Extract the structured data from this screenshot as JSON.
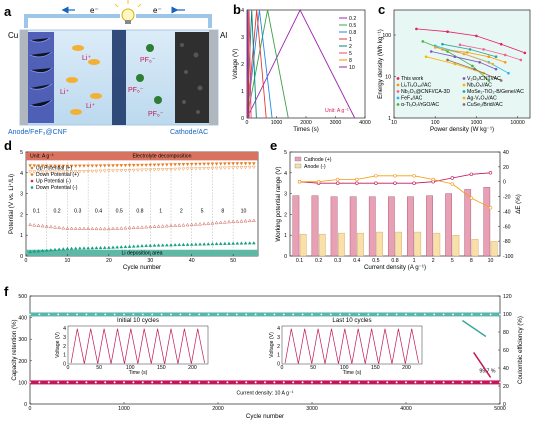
{
  "panels": {
    "a": {
      "label": "a",
      "electron_left": "e⁻",
      "electron_right": "e⁻",
      "cu": "Cu",
      "al": "Al",
      "ions": [
        "Li⁺",
        "Li⁺",
        "Li⁺"
      ],
      "anions": [
        "PF₆⁻",
        "PF₆⁻",
        "PF₆⁻"
      ],
      "anode_caption": "Anode/FeF₃@CNF",
      "cathode_caption": "Cathode/AC"
    },
    "b": {
      "label": "b"
    },
    "c": {
      "label": "c"
    },
    "d": {
      "label": "d"
    },
    "e": {
      "label": "e"
    },
    "f": {
      "label": "f"
    }
  },
  "colors": {
    "pink": "#c2185b",
    "teal": "#3aa99f",
    "orange": "#f39c12",
    "violet": "#7b1fa2"
  },
  "chart_data": [
    {
      "id": "b",
      "type": "line",
      "xlabel": "Times (s)",
      "ylabel": "Voltage (V)",
      "xlim": [
        0,
        4000
      ],
      "ylim": [
        0,
        4
      ],
      "xticks": [
        0,
        1000,
        2000,
        3000,
        4000
      ],
      "yticks": [
        0,
        1,
        2,
        3,
        4
      ],
      "legend_title": "",
      "annotation": "Unit: A g⁻¹",
      "series": [
        {
          "name": "0.2",
          "color": "#9c27b0",
          "points": [
            [
              0,
              0
            ],
            [
              1800,
              4
            ],
            [
              3650,
              0
            ]
          ]
        },
        {
          "name": "0.5",
          "color": "#43a047",
          "points": [
            [
              0,
              0
            ],
            [
              700,
              4
            ],
            [
              1400,
              0
            ]
          ]
        },
        {
          "name": "0.8",
          "color": "#1e88e5",
          "points": [
            [
              0,
              0
            ],
            [
              420,
              4
            ],
            [
              850,
              0
            ]
          ]
        },
        {
          "name": "1",
          "color": "#e53935",
          "points": [
            [
              0,
              0
            ],
            [
              330,
              4
            ],
            [
              650,
              0
            ]
          ]
        },
        {
          "name": "2",
          "color": "#00897b",
          "points": [
            [
              0,
              0
            ],
            [
              160,
              4
            ],
            [
              320,
              0
            ]
          ]
        },
        {
          "name": "5",
          "color": "#ec407a",
          "points": [
            [
              0,
              0
            ],
            [
              70,
              4
            ],
            [
              140,
              0
            ]
          ]
        },
        {
          "name": "8",
          "color": "#fb8c00",
          "points": [
            [
              0,
              0
            ],
            [
              40,
              4
            ],
            [
              80,
              0
            ]
          ]
        },
        {
          "name": "10",
          "color": "#8e24aa",
          "points": [
            [
              0,
              0
            ],
            [
              28,
              4
            ],
            [
              56,
              0
            ]
          ]
        }
      ]
    },
    {
      "id": "c",
      "type": "scatter",
      "xlabel": "Power density (W kg⁻¹)",
      "ylabel": "Energy density (Wh kg⁻¹)",
      "xscale": "log",
      "yscale": "log",
      "xlim": [
        10,
        20000
      ],
      "ylim": [
        1,
        400
      ],
      "xticks": [
        10,
        100,
        1000,
        10000
      ],
      "yticks": [
        1,
        10,
        100
      ],
      "legend": [
        {
          "name": "This work",
          "color": "#e91e63"
        },
        {
          "name": "Li₂Ti₄O₁₂//AC",
          "color": "#ff9800"
        },
        {
          "name": "Nb₂O₅@CNF//CA-3D",
          "color": "#f06292"
        },
        {
          "name": "FeF₃//AC",
          "color": "#29b6f6"
        },
        {
          "name": "α-Ti₃O₇//rGO/AC",
          "color": "#4caf50"
        },
        {
          "name": "V₂O₅/CNT//AC",
          "color": "#7e57c2"
        },
        {
          "name": "Nb₂O₅//AC",
          "color": "#ffb300"
        },
        {
          "name": "MoSe₂-TiO₂-B/Gene//AC",
          "color": "#26a69a"
        },
        {
          "name": "Ag-V₂O₅//AC",
          "color": "#ffa726"
        },
        {
          "name": "CuSe₂/Brid//AC",
          "color": "#8d6e63"
        }
      ],
      "series": [
        {
          "name": "This work",
          "color": "#e91e63",
          "x": [
            35,
            200,
            1000,
            4000,
            15000
          ],
          "y": [
            140,
            120,
            95,
            60,
            37
          ]
        },
        {
          "name": "Li₂Ti₄O₁₂//AC",
          "color": "#ff9800",
          "x": [
            150,
            600,
            2000,
            5000
          ],
          "y": [
            45,
            38,
            30,
            22
          ]
        },
        {
          "name": "Nb₂O₅@CNF//CA-3D",
          "color": "#f06292",
          "x": [
            400,
            1500,
            5000,
            12000
          ],
          "y": [
            58,
            45,
            33,
            25
          ]
        },
        {
          "name": "FeF₃//AC",
          "color": "#29b6f6",
          "x": [
            100,
            500,
            2000,
            6000
          ],
          "y": [
            55,
            35,
            22,
            12
          ]
        },
        {
          "name": "α-Ti₃O₇//rGO/AC",
          "color": "#4caf50",
          "x": [
            50,
            200,
            800,
            2000
          ],
          "y": [
            70,
            40,
            18,
            8
          ]
        },
        {
          "name": "V₂O₅/CNT//AC",
          "color": "#7e57c2",
          "x": [
            80,
            300,
            1200,
            3000
          ],
          "y": [
            40,
            30,
            22,
            15
          ]
        },
        {
          "name": "Nb₂O₅//AC",
          "color": "#ffb300",
          "x": [
            60,
            300,
            1500
          ],
          "y": [
            30,
            20,
            12
          ]
        },
        {
          "name": "MoSe₂-TiO₂-B/Gene//AC",
          "color": "#26a69a",
          "x": [
            150,
            700,
            3000
          ],
          "y": [
            60,
            45,
            30
          ]
        },
        {
          "name": "Ag-V₂O₅//AC",
          "color": "#ffa726",
          "x": [
            100,
            500,
            2500
          ],
          "y": [
            50,
            35,
            20
          ]
        },
        {
          "name": "CuSe₂/Brid//AC",
          "color": "#8d6e63",
          "x": [
            200,
            900,
            4000
          ],
          "y": [
            25,
            15,
            8
          ]
        }
      ]
    },
    {
      "id": "d",
      "type": "scatter",
      "xlabel": "Cycle number",
      "ylabel": "Potential (V vs. Li⁺/Li)",
      "xlim": [
        0,
        56
      ],
      "ylim": [
        0,
        5
      ],
      "xticks": [
        0,
        10,
        20,
        30,
        40,
        50
      ],
      "yticks": [
        0,
        1,
        2,
        3,
        4,
        5
      ],
      "top_band": "Electrolyte decomposition",
      "bottom_band": "Li deposition area",
      "unit_label": "Unit: A g⁻¹",
      "rate_labels": [
        "0.1",
        "0.2",
        "0.3",
        "0.4",
        "0.5",
        "0.8",
        "1",
        "2",
        "5",
        "8",
        "10"
      ],
      "legend": [
        {
          "name": "Up Potential (+)",
          "color": "#e67e22",
          "marker": "tri-down"
        },
        {
          "name": "Down Potential (+)",
          "color": "#e67e22",
          "marker": "tri-down-open"
        },
        {
          "name": "Up Potential (-)",
          "color": "#c0392b",
          "marker": "tri-up-open"
        },
        {
          "name": "Down Potential (-)",
          "color": "#16a085",
          "marker": "tri-up"
        }
      ],
      "series": [
        {
          "name": "Up Potential (+)",
          "color": "#e67e22",
          "values_at_cycles": [
            [
              1,
              4.35
            ],
            [
              10,
              4.33
            ],
            [
              20,
              4.35
            ],
            [
              30,
              4.38
            ],
            [
              40,
              4.42
            ],
            [
              50,
              4.45
            ],
            [
              55,
              4.45
            ]
          ]
        },
        {
          "name": "Down Potential (+)",
          "color": "#e67e22",
          "values_at_cycles": [
            [
              1,
              4.05
            ],
            [
              10,
              4.05
            ],
            [
              20,
              4.1
            ],
            [
              30,
              4.15
            ],
            [
              40,
              4.2
            ],
            [
              50,
              4.25
            ],
            [
              55,
              4.28
            ]
          ]
        },
        {
          "name": "Up Potential (-)",
          "color": "#c0392b",
          "values_at_cycles": [
            [
              1,
              1.5
            ],
            [
              10,
              1.32
            ],
            [
              20,
              1.3
            ],
            [
              30,
              1.4
            ],
            [
              40,
              1.5
            ],
            [
              50,
              1.65
            ],
            [
              55,
              1.7
            ]
          ]
        },
        {
          "name": "Down Potential (-)",
          "color": "#16a085",
          "values_at_cycles": [
            [
              1,
              0.2
            ],
            [
              10,
              0.35
            ],
            [
              20,
              0.4
            ],
            [
              30,
              0.5
            ],
            [
              40,
              0.55
            ],
            [
              50,
              0.6
            ],
            [
              55,
              0.62
            ]
          ]
        }
      ]
    },
    {
      "id": "e",
      "type": "bar",
      "xlabel": "Current density (A g⁻¹)",
      "ylabel": "Working potential range (V)",
      "y2label": "ΔE (%)",
      "categories": [
        "0.1",
        "0.2",
        "0.3",
        "0.4",
        "0.5",
        "0.8",
        "1",
        "2",
        "5",
        "8",
        "10"
      ],
      "ylim": [
        0,
        5
      ],
      "y2lim": [
        -100,
        40
      ],
      "yticks": [
        0,
        1,
        2,
        3,
        4,
        5
      ],
      "y2ticks": [
        -100,
        -80,
        -60,
        -40,
        -20,
        0,
        20,
        40
      ],
      "legend": [
        {
          "name": "Cathode (+)",
          "color": "#e8a0b4"
        },
        {
          "name": "Anode (-)",
          "color": "#f9e0a8"
        }
      ],
      "series": [
        {
          "name": "Cathode (+)",
          "color": "#e8a0b4",
          "values": [
            2.9,
            2.9,
            2.85,
            2.85,
            2.85,
            2.85,
            2.85,
            2.9,
            3.0,
            3.2,
            3.3
          ]
        },
        {
          "name": "Anode (-)",
          "color": "#f9e0a8",
          "values": [
            1.05,
            1.05,
            1.1,
            1.1,
            1.15,
            1.15,
            1.15,
            1.1,
            1.0,
            0.8,
            0.7
          ]
        }
      ],
      "lines": [
        {
          "name": "ΔE Cathode",
          "color": "#c2185b",
          "values": [
            0,
            -2,
            -2,
            -2,
            -2,
            -2,
            -2,
            0,
            5,
            10,
            12
          ]
        },
        {
          "name": "ΔE Anode",
          "color": "#f39c12",
          "values": [
            0,
            0,
            3,
            3,
            8,
            8,
            8,
            3,
            -3,
            -22,
            -35
          ]
        }
      ]
    },
    {
      "id": "f",
      "type": "scatter",
      "xlabel": "Cycle number",
      "ylabel": "Capacity retention (%)",
      "y2label": "Coulombic efficiency (%)",
      "xlim": [
        0,
        5000
      ],
      "ylim": [
        0,
        500
      ],
      "y2lim": [
        0,
        120
      ],
      "xticks": [
        0,
        1000,
        2000,
        3000,
        4000,
        5000
      ],
      "yticks": [
        0,
        100,
        200,
        300,
        400,
        500
      ],
      "y2ticks": [
        0,
        20,
        40,
        60,
        80,
        100,
        120
      ],
      "inset_left_title": "Initial 10 cycles",
      "inset_right_title": "Last 10 cycles",
      "inset_xlabel": "Time (s)",
      "inset_ylabel": "Voltage (V)",
      "inset_xticks": [
        0,
        50,
        100,
        150,
        200
      ],
      "inset_yticks": [
        0,
        1,
        2,
        3,
        4
      ],
      "annotation_value": "99.7 %",
      "annotation_current": "Current density: 10 A g⁻¹",
      "series": [
        {
          "name": "Capacity retention",
          "color": "#c2185b",
          "approx": 100,
          "end": 99.7
        },
        {
          "name": "Coulombic efficiency",
          "color": "#3aa99f",
          "approx_pct": 99.5
        }
      ]
    }
  ]
}
